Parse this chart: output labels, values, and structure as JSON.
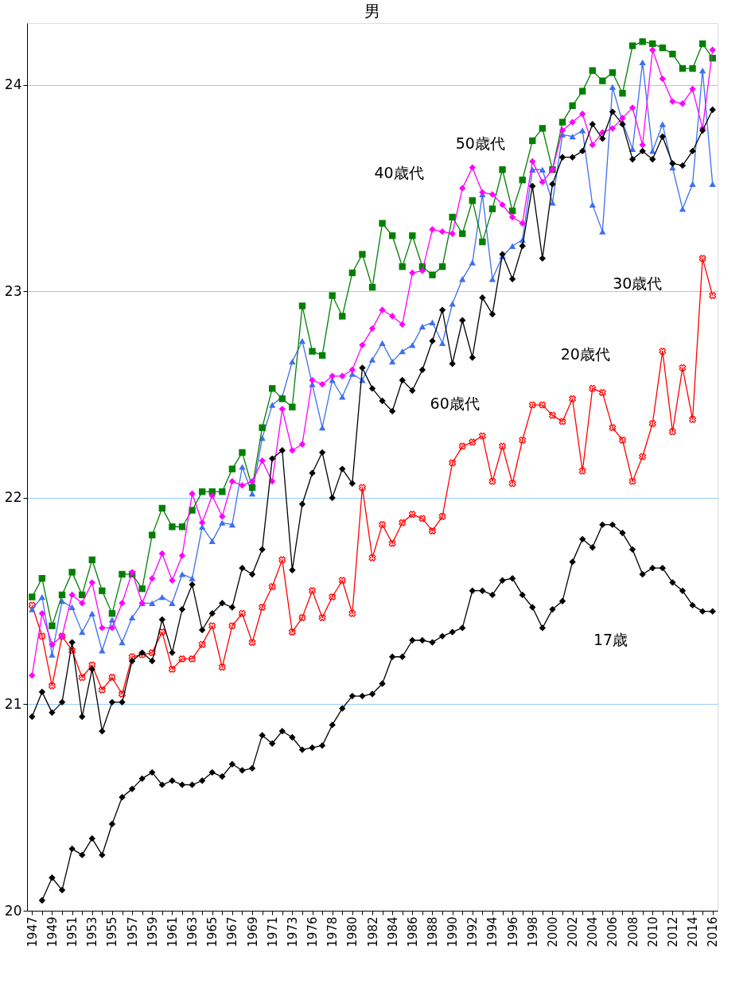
{
  "chart_data": {
    "type": "line",
    "title": "男",
    "categories": [
      "1947",
      null,
      "1949",
      null,
      "1951",
      null,
      "1953",
      null,
      "1955",
      null,
      "1957",
      null,
      "1959",
      null,
      "1961",
      null,
      "1963",
      null,
      "1965",
      null,
      "1967",
      null,
      "1969",
      null,
      "1971",
      null,
      "1973",
      null,
      "1976",
      null,
      "1978",
      null,
      "1980",
      null,
      "1982",
      null,
      "1984",
      null,
      "1986",
      null,
      "1988",
      null,
      "1990",
      null,
      "1992",
      null,
      "1994",
      null,
      "1996",
      null,
      "1998",
      null,
      "2000",
      null,
      "2002",
      null,
      "2004",
      null,
      "2006",
      null,
      "2008",
      null,
      "2010",
      null,
      "2012",
      null,
      "2014",
      null,
      "2016"
    ],
    "series": [
      {
        "name": "17歳",
        "color": "#000000",
        "marker": "diamond",
        "values": [
          null,
          20.05,
          20.16,
          20.1,
          20.3,
          20.27,
          20.35,
          20.27,
          20.42,
          20.55,
          20.59,
          20.64,
          20.67,
          20.61,
          20.63,
          20.61,
          20.61,
          20.63,
          20.67,
          20.65,
          20.71,
          20.68,
          20.69,
          20.85,
          20.81,
          20.87,
          20.84,
          20.78,
          20.79,
          20.8,
          20.9,
          20.98,
          21.04,
          21.04,
          21.05,
          21.1,
          21.23,
          21.23,
          21.31,
          21.31,
          21.3,
          21.33,
          21.35,
          21.37,
          21.55,
          21.55,
          21.53,
          21.6,
          21.61,
          21.53,
          21.47,
          21.37,
          21.46,
          21.5,
          21.69,
          21.8,
          21.76,
          21.87,
          21.87,
          21.83,
          21.75,
          21.63,
          21.66,
          21.66,
          21.59,
          21.55,
          21.48,
          21.45,
          21.45
        ]
      },
      {
        "name": "20歳代",
        "color": "#ff0000",
        "marker": "cross",
        "values": [
          21.48,
          21.33,
          21.09,
          21.33,
          21.26,
          21.13,
          21.19,
          21.07,
          21.13,
          21.05,
          21.23,
          21.24,
          21.25,
          21.35,
          21.17,
          21.22,
          21.22,
          21.29,
          21.38,
          21.18,
          21.38,
          21.44,
          21.3,
          21.47,
          21.57,
          21.7,
          21.35,
          21.42,
          21.55,
          21.42,
          21.52,
          21.6,
          21.44,
          22.05,
          21.71,
          21.87,
          21.78,
          21.88,
          21.92,
          21.9,
          21.84,
          21.91,
          22.17,
          22.25,
          22.27,
          22.3,
          22.08,
          22.25,
          22.07,
          22.28,
          22.45,
          22.45,
          22.4,
          22.37,
          22.48,
          22.13,
          22.53,
          22.51,
          22.34,
          22.28,
          22.08,
          22.2,
          22.36,
          22.71,
          22.32,
          22.63,
          22.38,
          23.16,
          22.98
        ]
      },
      {
        "name": "30歳代",
        "color": "#3d6ff0",
        "marker": "triangle",
        "values": [
          21.46,
          21.52,
          21.24,
          21.5,
          21.47,
          21.35,
          21.44,
          21.26,
          21.41,
          21.3,
          21.42,
          21.49,
          21.49,
          21.52,
          21.49,
          21.63,
          21.61,
          21.86,
          21.79,
          21.88,
          21.87,
          22.15,
          22.02,
          22.29,
          22.45,
          22.49,
          22.66,
          22.76,
          22.55,
          22.34,
          22.57,
          22.49,
          22.6,
          22.57,
          22.67,
          22.75,
          22.66,
          22.71,
          22.74,
          22.83,
          22.85,
          22.75,
          22.94,
          23.06,
          23.14,
          23.47,
          23.06,
          23.17,
          23.22,
          23.25,
          23.59,
          23.59,
          23.43,
          23.76,
          23.75,
          23.78,
          23.42,
          23.29,
          23.99,
          23.82,
          23.69,
          24.11,
          23.68,
          23.81,
          23.6,
          23.4,
          23.52,
          24.07,
          23.52
        ]
      },
      {
        "name": "40歳代",
        "color": "#008000",
        "marker": "square",
        "values": [
          21.52,
          21.61,
          21.38,
          21.53,
          21.64,
          21.53,
          21.7,
          21.55,
          21.44,
          21.63,
          21.63,
          21.56,
          21.82,
          21.95,
          21.86,
          21.86,
          21.94,
          22.03,
          22.03,
          22.03,
          22.14,
          22.22,
          22.05,
          22.34,
          22.53,
          22.48,
          22.44,
          22.93,
          22.71,
          22.69,
          22.98,
          22.88,
          23.09,
          23.18,
          23.02,
          23.33,
          23.27,
          23.12,
          23.27,
          23.12,
          23.08,
          23.12,
          23.36,
          23.28,
          23.44,
          23.24,
          23.4,
          23.59,
          23.39,
          23.54,
          23.73,
          23.79,
          23.59,
          23.82,
          23.9,
          23.97,
          24.07,
          24.02,
          24.06,
          23.96,
          24.19,
          24.21,
          24.2,
          24.18,
          24.15,
          24.08,
          24.08,
          24.2,
          24.13
        ]
      },
      {
        "name": "50歳代",
        "color": "#ff00ff",
        "marker": "diamond",
        "values": [
          21.14,
          21.44,
          21.29,
          21.33,
          21.53,
          21.49,
          21.59,
          21.37,
          21.37,
          21.49,
          21.64,
          21.49,
          21.61,
          21.73,
          21.6,
          21.72,
          22.02,
          21.88,
          22.01,
          21.91,
          22.08,
          22.06,
          22.08,
          22.18,
          22.08,
          22.43,
          22.23,
          22.26,
          22.57,
          22.55,
          22.59,
          22.59,
          22.62,
          22.74,
          22.82,
          22.91,
          22.88,
          22.84,
          23.09,
          23.1,
          23.3,
          23.29,
          23.28,
          23.5,
          23.6,
          23.48,
          23.47,
          23.42,
          23.36,
          23.33,
          23.63,
          23.53,
          23.59,
          23.78,
          23.82,
          23.86,
          23.71,
          23.77,
          23.79,
          23.84,
          23.89,
          23.71,
          24.17,
          24.03,
          23.92,
          23.91,
          23.98,
          23.79,
          24.17
        ]
      },
      {
        "name": "60歳代",
        "color": "#000000",
        "marker": "diamond",
        "values": [
          20.94,
          21.06,
          20.96,
          21.01,
          21.3,
          20.94,
          21.17,
          20.87,
          21.01,
          21.01,
          21.21,
          21.25,
          21.21,
          21.41,
          21.25,
          21.46,
          21.58,
          21.36,
          21.44,
          21.49,
          21.47,
          21.66,
          21.63,
          21.75,
          22.19,
          22.23,
          21.65,
          21.97,
          22.12,
          22.22,
          22.0,
          22.14,
          22.07,
          22.63,
          22.53,
          22.47,
          22.42,
          22.57,
          22.52,
          22.62,
          22.76,
          22.91,
          22.65,
          22.86,
          22.68,
          22.97,
          22.89,
          23.18,
          23.06,
          23.22,
          23.51,
          23.16,
          23.52,
          23.65,
          23.65,
          23.68,
          23.81,
          23.74,
          23.87,
          23.81,
          23.64,
          23.68,
          23.64,
          23.75,
          23.62,
          23.61,
          23.68,
          23.78,
          23.88
        ]
      }
    ],
    "ylim": [
      20,
      24.3
    ],
    "yticks": [
      20,
      21,
      22,
      23,
      24
    ],
    "grid": "y",
    "line_style": "solid"
  }
}
